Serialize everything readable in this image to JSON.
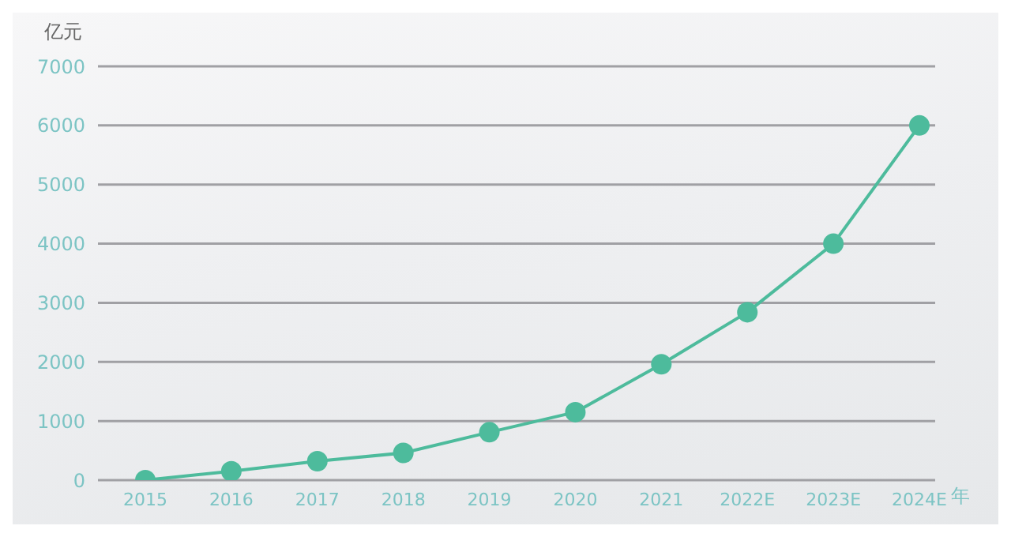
{
  "chart_data": {
    "type": "line",
    "xlabel": "年",
    "ylabel": "亿元",
    "categories": [
      "2015",
      "2016",
      "2017",
      "2018",
      "2019",
      "2020",
      "2021",
      "2022E",
      "2023E",
      "2024E"
    ],
    "series": [
      {
        "color": "#4dbb9c",
        "values": [
          0,
          150,
          320,
          460,
          810,
          1150,
          1960,
          2840,
          4000,
          6000
        ]
      }
    ],
    "ylim": [
      0,
      7000
    ],
    "yticks": [
      0,
      1000,
      2000,
      3000,
      4000,
      5000,
      6000,
      7000
    ],
    "grid": "y",
    "marker": "circle",
    "line_style": "solid"
  }
}
